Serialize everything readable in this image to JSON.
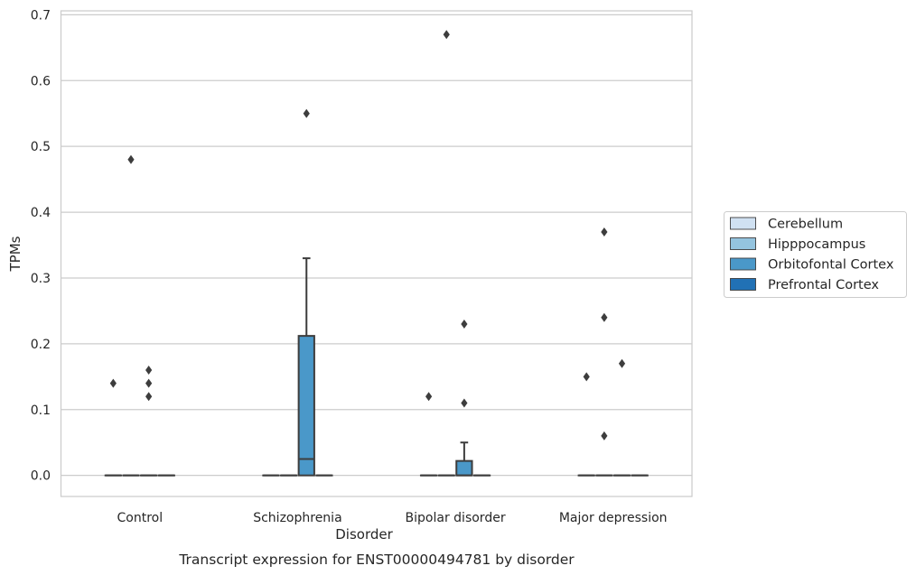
{
  "chart_data": {
    "type": "box",
    "title": "",
    "caption": "Transcript expression for ENST00000494781 by disorder",
    "xlabel": "Disorder",
    "ylabel": "TPMs",
    "ylim": [
      -0.032,
      0.706
    ],
    "yticks": [
      0.0,
      0.1,
      0.2,
      0.3,
      0.4,
      0.5,
      0.6,
      0.7
    ],
    "ytick_labels": [
      "0.0",
      "0.1",
      "0.2",
      "0.3",
      "0.4",
      "0.5",
      "0.6",
      "0.7"
    ],
    "grid": true,
    "legend_position": "right-center",
    "categories": [
      "Control",
      "Schizophrenia",
      "Bipolar disorder",
      "Major depression"
    ],
    "series": [
      {
        "name": "Cerebellum",
        "color": "#d0e1f2",
        "boxes": [
          {
            "q1": 0,
            "median": 0,
            "q3": 0,
            "whisker_low": 0,
            "whisker_high": 0,
            "outliers": [
              0.14
            ]
          },
          {
            "q1": 0,
            "median": 0,
            "q3": 0,
            "whisker_low": 0,
            "whisker_high": 0,
            "outliers": []
          },
          {
            "q1": 0,
            "median": 0,
            "q3": 0,
            "whisker_low": 0,
            "whisker_high": 0,
            "outliers": [
              0.12
            ]
          },
          {
            "q1": 0,
            "median": 0,
            "q3": 0,
            "whisker_low": 0,
            "whisker_high": 0,
            "outliers": [
              0.15
            ]
          }
        ]
      },
      {
        "name": "Hipppocampus",
        "color": "#94c4df",
        "boxes": [
          {
            "q1": 0,
            "median": 0,
            "q3": 0,
            "whisker_low": 0,
            "whisker_high": 0,
            "outliers": [
              0.48
            ]
          },
          {
            "q1": 0,
            "median": 0,
            "q3": 0,
            "whisker_low": 0,
            "whisker_high": 0,
            "outliers": []
          },
          {
            "q1": 0,
            "median": 0,
            "q3": 0,
            "whisker_low": 0,
            "whisker_high": 0,
            "outliers": [
              0.67
            ]
          },
          {
            "q1": 0,
            "median": 0,
            "q3": 0,
            "whisker_low": 0,
            "whisker_high": 0,
            "outliers": [
              0.06,
              0.24,
              0.37
            ]
          }
        ]
      },
      {
        "name": "Orbitofontal Cortex",
        "color": "#4a98c9",
        "boxes": [
          {
            "q1": 0,
            "median": 0,
            "q3": 0,
            "whisker_low": 0,
            "whisker_high": 0,
            "outliers": [
              0.12,
              0.14,
              0.16
            ]
          },
          {
            "q1": 0,
            "median": 0.025,
            "q3": 0.212,
            "whisker_low": 0,
            "whisker_high": 0.33,
            "outliers": [
              0.55
            ]
          },
          {
            "q1": 0,
            "median": 0,
            "q3": 0.022,
            "whisker_low": 0,
            "whisker_high": 0.05,
            "outliers": [
              0.11,
              0.23
            ]
          },
          {
            "q1": 0,
            "median": 0,
            "q3": 0,
            "whisker_low": 0,
            "whisker_high": 0,
            "outliers": [
              0.17
            ]
          }
        ]
      },
      {
        "name": "Prefrontal Cortex",
        "color": "#2171b5",
        "boxes": [
          {
            "q1": 0,
            "median": 0,
            "q3": 0,
            "whisker_low": 0,
            "whisker_high": 0,
            "outliers": []
          },
          {
            "q1": 0,
            "median": 0,
            "q3": 0,
            "whisker_low": 0,
            "whisker_high": 0,
            "outliers": []
          },
          {
            "q1": 0,
            "median": 0,
            "q3": 0,
            "whisker_low": 0,
            "whisker_high": 0,
            "outliers": []
          },
          {
            "q1": 0,
            "median": 0,
            "q3": 0,
            "whisker_low": 0,
            "whisker_high": 0,
            "outliers": []
          }
        ]
      }
    ]
  }
}
